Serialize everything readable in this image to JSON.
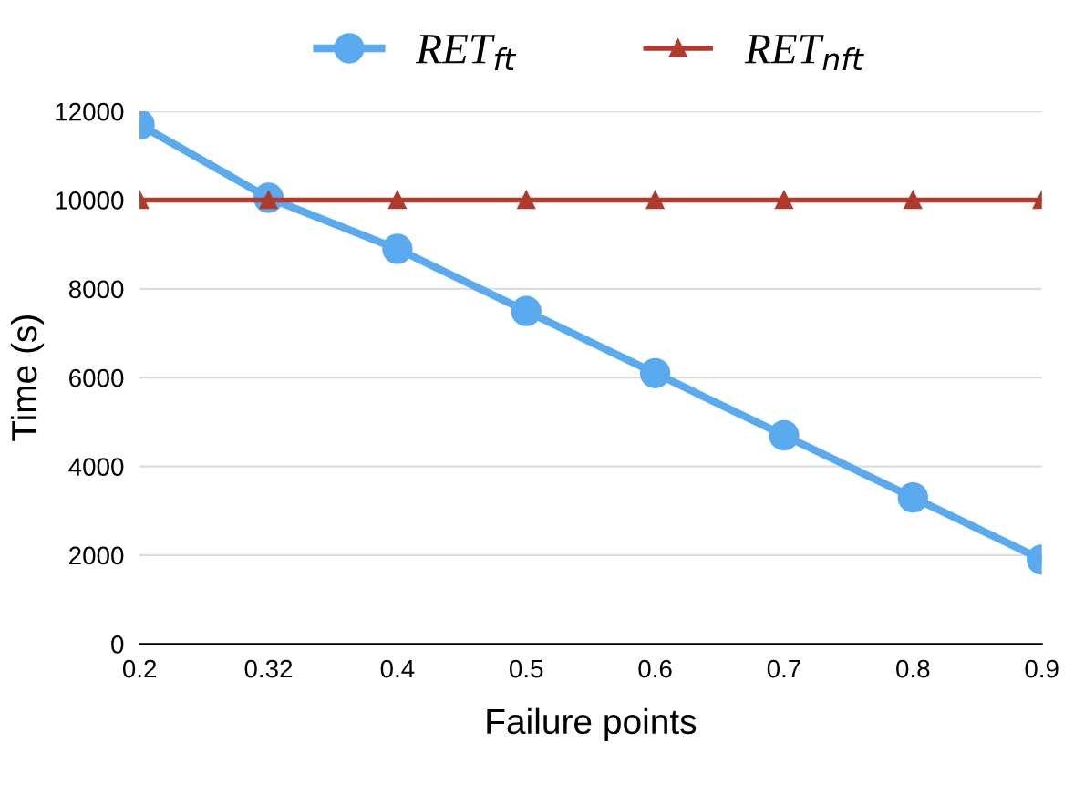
{
  "chart_data": {
    "type": "line",
    "xlabel": "Failure points",
    "ylabel": "Time (s)",
    "categories": [
      "0.2",
      "0.32",
      "0.4",
      "0.5",
      "0.6",
      "0.7",
      "0.8",
      "0.9"
    ],
    "series": [
      {
        "name": "RET$_{ft}$",
        "color": "#5aaaf0",
        "marker": "circle",
        "values": [
          11700,
          10050,
          8900,
          7500,
          6100,
          4700,
          3300,
          1900
        ]
      },
      {
        "name": "RET$_{nft}$",
        "color": "#b03a2e",
        "marker": "triangle",
        "values": [
          10000,
          10000,
          10000,
          10000,
          10000,
          10000,
          10000,
          10000
        ]
      }
    ],
    "ylim": [
      0,
      12000
    ],
    "yticks": [
      0,
      2000,
      4000,
      6000,
      8000,
      10000,
      12000
    ],
    "grid": "y",
    "legend": "top",
    "line_style": "solid"
  }
}
